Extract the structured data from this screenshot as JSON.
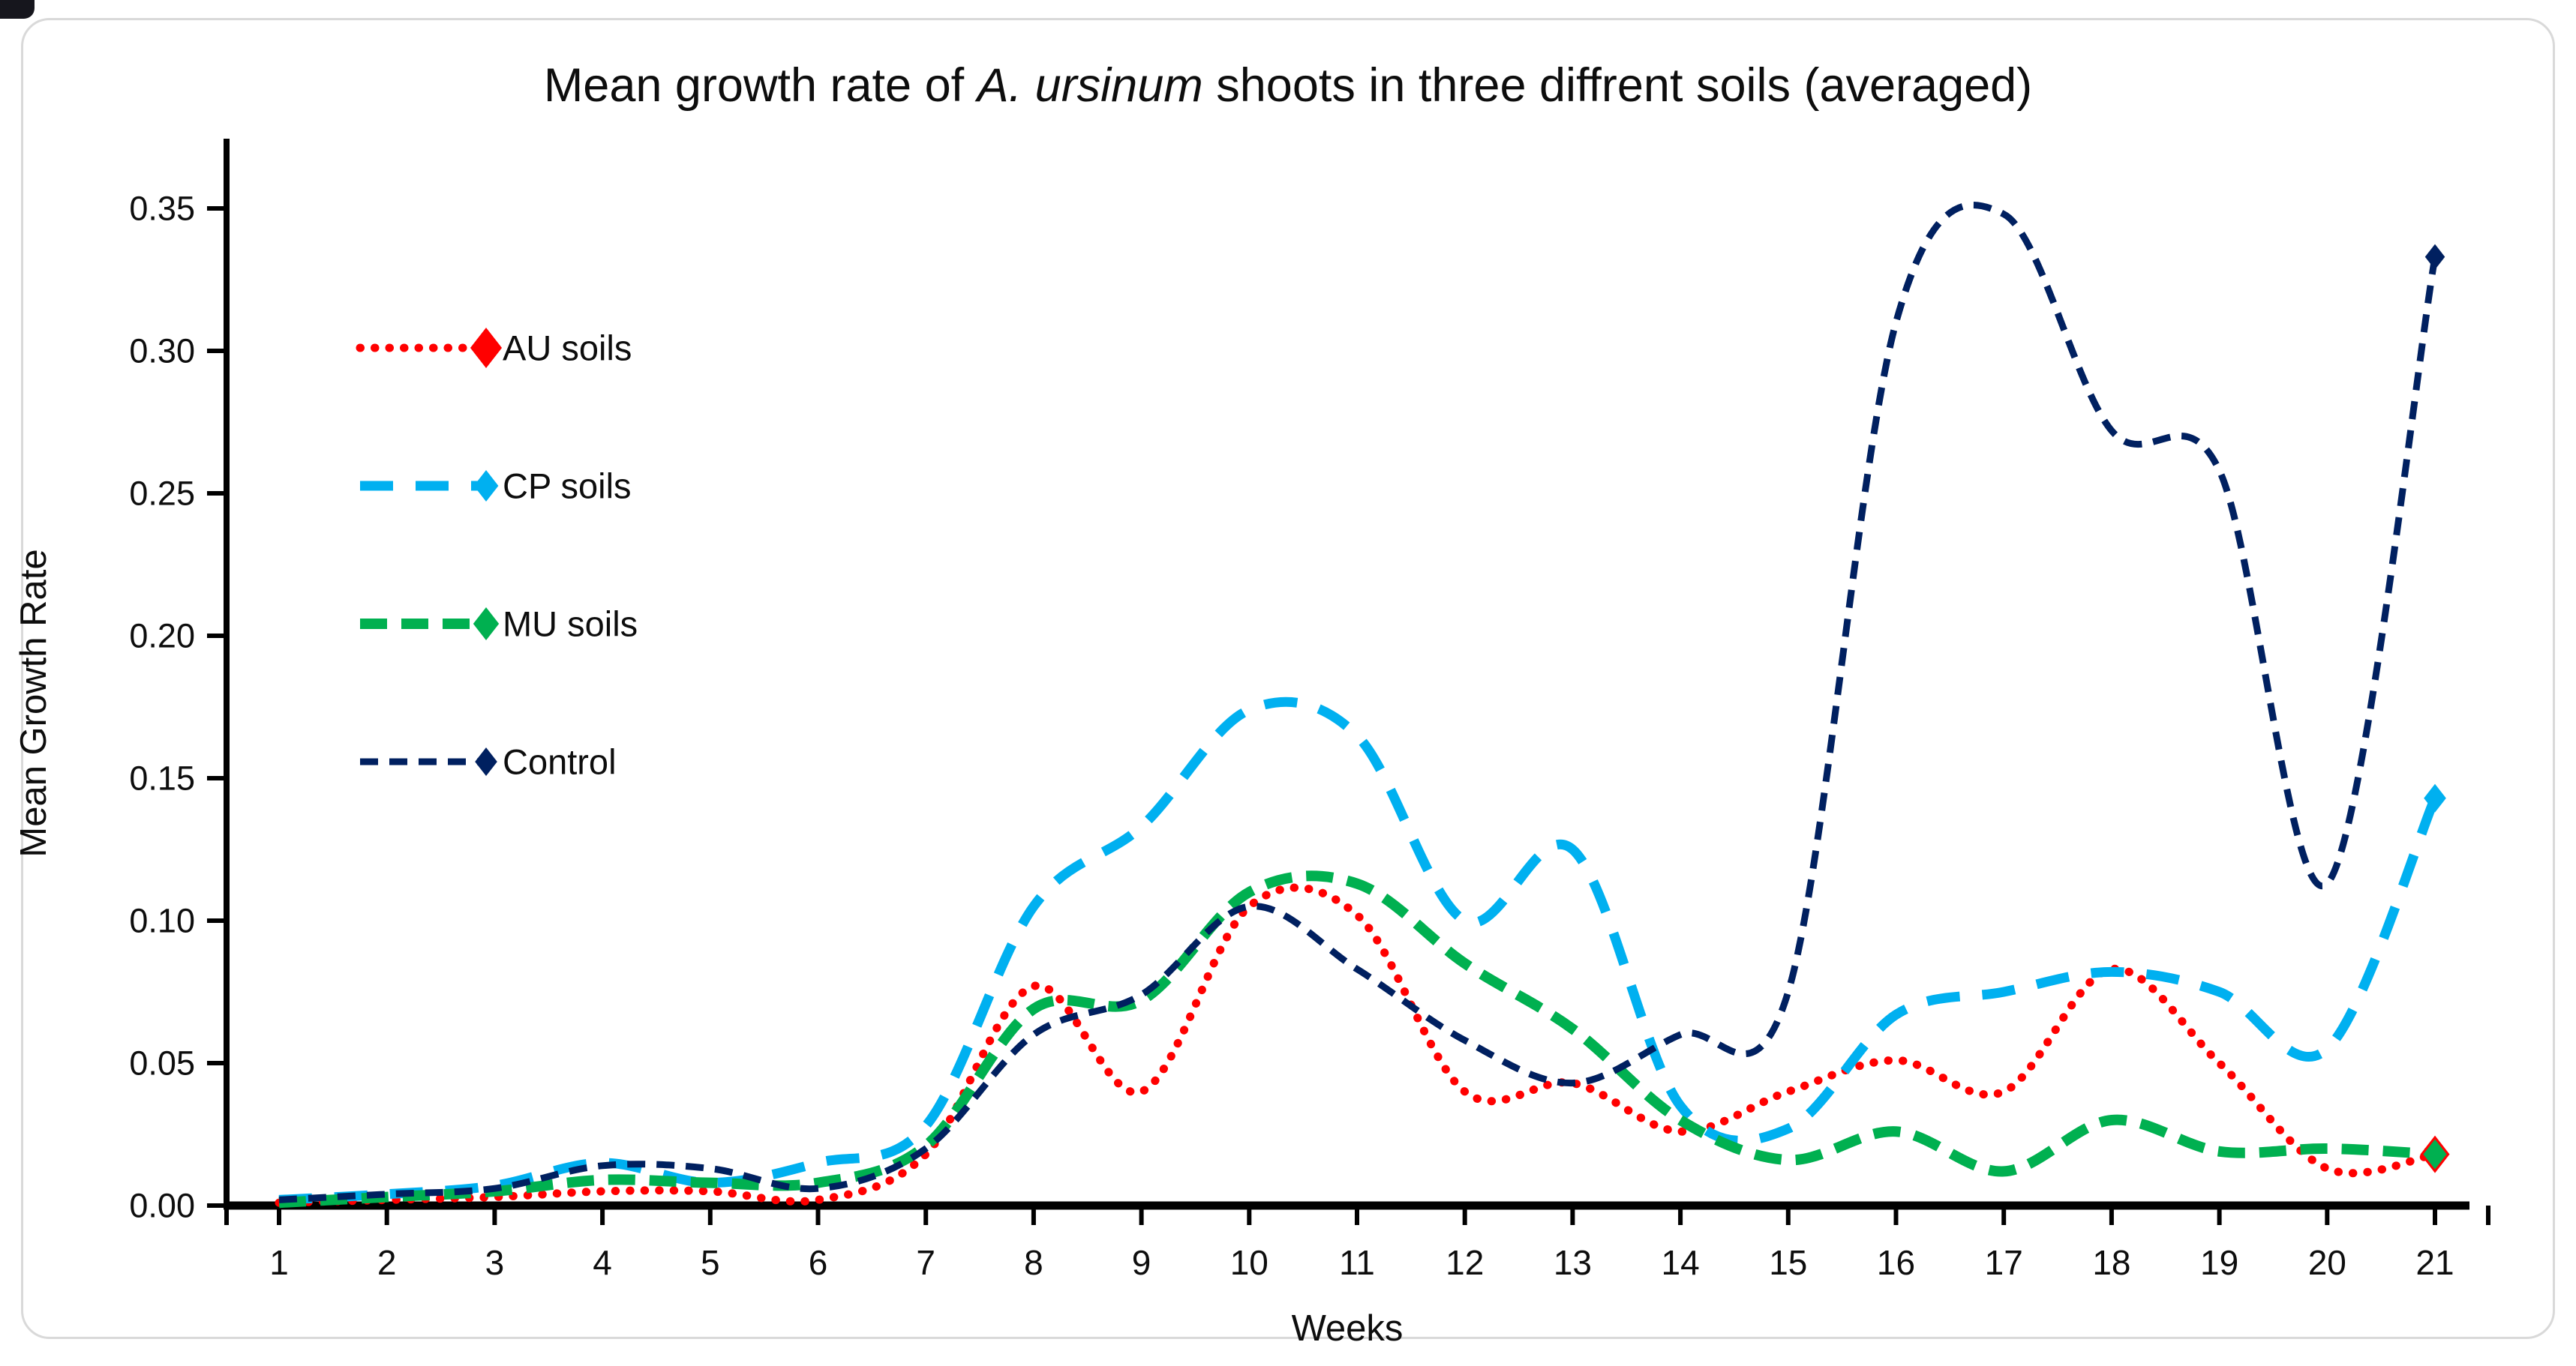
{
  "chart": {
    "title_prefix": "Mean growth rate of ",
    "title_italic": "A. ursinum",
    "title_suffix": " shoots in three diffrent soils (averaged)",
    "ylabel": "Mean Growth Rate",
    "xlabel": "Weeks",
    "y_ticks": [
      "0.00",
      "0.05",
      "0.10",
      "0.15",
      "0.20",
      "0.25",
      "0.30",
      "0.35"
    ]
  },
  "chart_data": {
    "type": "line",
    "title": "Mean growth rate of A. ursinum shoots in three diffrent soils (averaged)",
    "xlabel": "Weeks",
    "ylabel": "Mean Growth Rate",
    "x": [
      1,
      2,
      3,
      4,
      5,
      6,
      7,
      8,
      9,
      10,
      11,
      12,
      13,
      14,
      15,
      16,
      17,
      18,
      19,
      20,
      21
    ],
    "ylim": [
      0,
      0.35
    ],
    "y_tick_step": 0.05,
    "grid": false,
    "line_style": "smoothed",
    "legend_position": "inside-top-left",
    "axis_color": "#000000",
    "series": [
      {
        "name": "AU soils",
        "color": "#ff0000",
        "dash": "dot",
        "marker": "diamond",
        "marker_on": "last",
        "values": [
          0.001,
          0.002,
          0.003,
          0.005,
          0.005,
          0.002,
          0.018,
          0.077,
          0.04,
          0.105,
          0.102,
          0.04,
          0.043,
          0.026,
          0.04,
          0.051,
          0.04,
          0.083,
          0.05,
          0.013,
          0.018
        ]
      },
      {
        "name": "CP soils",
        "color": "#00b0f0",
        "dash": "long-dash",
        "marker": "diamond",
        "marker_on": "last",
        "values": [
          0.002,
          0.004,
          0.007,
          0.015,
          0.008,
          0.015,
          0.028,
          0.105,
          0.133,
          0.174,
          0.165,
          0.1,
          0.125,
          0.035,
          0.027,
          0.067,
          0.075,
          0.082,
          0.075,
          0.055,
          0.143
        ]
      },
      {
        "name": "MU soils",
        "color": "#00b050",
        "dash": "dash",
        "marker": "diamond",
        "marker_on": "last",
        "values": [
          0.001,
          0.003,
          0.005,
          0.009,
          0.008,
          0.008,
          0.021,
          0.069,
          0.072,
          0.11,
          0.113,
          0.085,
          0.062,
          0.03,
          0.016,
          0.026,
          0.012,
          0.03,
          0.019,
          0.02,
          0.018
        ]
      },
      {
        "name": "Control",
        "color": "#002060",
        "dash": "short-dash",
        "marker": "diamond",
        "marker_on": "last",
        "values": [
          0.002,
          0.004,
          0.006,
          0.014,
          0.013,
          0.006,
          0.02,
          0.06,
          0.074,
          0.105,
          0.083,
          0.058,
          0.043,
          0.06,
          0.075,
          0.31,
          0.348,
          0.272,
          0.258,
          0.113,
          0.333
        ]
      }
    ]
  }
}
